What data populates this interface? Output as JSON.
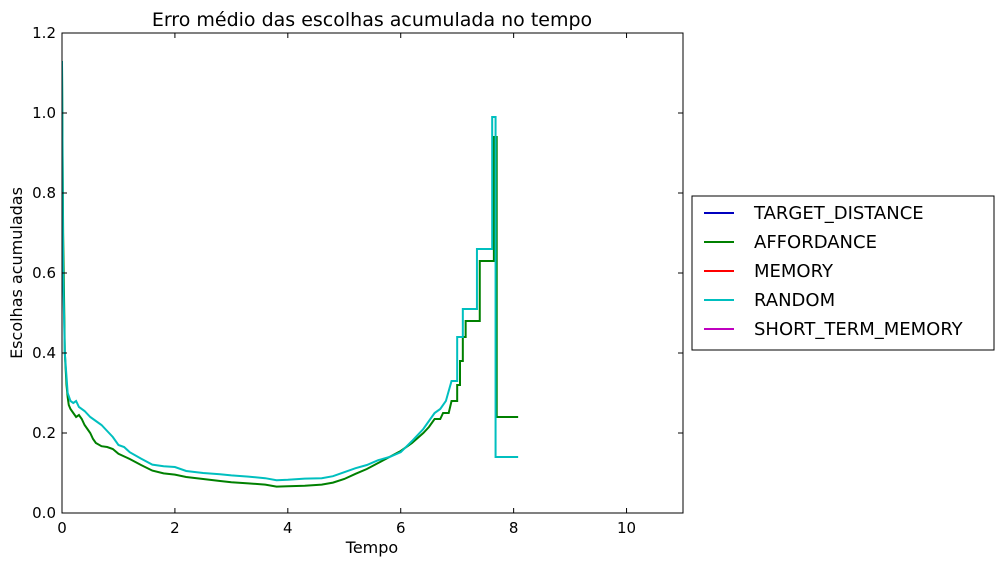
{
  "chart_data": {
    "type": "line",
    "title": "Erro médio das escolhas acumulada no tempo",
    "xlabel": "Tempo",
    "ylabel": "Escolhas acumuladas",
    "xlim": [
      0,
      11
    ],
    "ylim": [
      0,
      1.2
    ],
    "x_ticks": [
      0,
      2,
      4,
      6,
      8,
      10
    ],
    "y_ticks": [
      0.0,
      0.2,
      0.4,
      0.6,
      0.8,
      1.0,
      1.2
    ],
    "x_tick_labels": [
      "0",
      "2",
      "4",
      "6",
      "8",
      "10"
    ],
    "y_tick_labels": [
      "0.0",
      "0.2",
      "0.4",
      "0.6",
      "0.8",
      "1.0",
      "1.2"
    ],
    "grid": false,
    "legend_position": "right-outside",
    "series": [
      {
        "name": "TARGET_DISTANCE",
        "color": "#0000bf",
        "points": []
      },
      {
        "name": "AFFORDANCE",
        "color": "#008000",
        "points": [
          [
            0.0,
            1.12
          ],
          [
            0.02,
            0.7
          ],
          [
            0.05,
            0.4
          ],
          [
            0.08,
            0.32
          ],
          [
            0.1,
            0.29
          ],
          [
            0.12,
            0.27
          ],
          [
            0.15,
            0.26
          ],
          [
            0.2,
            0.25
          ],
          [
            0.25,
            0.24
          ],
          [
            0.3,
            0.245
          ],
          [
            0.35,
            0.235
          ],
          [
            0.4,
            0.22
          ],
          [
            0.45,
            0.21
          ],
          [
            0.5,
            0.2
          ],
          [
            0.55,
            0.185
          ],
          [
            0.6,
            0.175
          ],
          [
            0.7,
            0.167
          ],
          [
            0.8,
            0.165
          ],
          [
            0.9,
            0.16
          ],
          [
            1.0,
            0.148
          ],
          [
            1.2,
            0.135
          ],
          [
            1.4,
            0.12
          ],
          [
            1.6,
            0.106
          ],
          [
            1.8,
            0.099
          ],
          [
            2.0,
            0.096
          ],
          [
            2.2,
            0.09
          ],
          [
            2.5,
            0.085
          ],
          [
            2.8,
            0.08
          ],
          [
            3.0,
            0.077
          ],
          [
            3.3,
            0.074
          ],
          [
            3.6,
            0.071
          ],
          [
            3.8,
            0.066
          ],
          [
            4.0,
            0.067
          ],
          [
            4.3,
            0.068
          ],
          [
            4.6,
            0.071
          ],
          [
            4.8,
            0.076
          ],
          [
            5.0,
            0.085
          ],
          [
            5.2,
            0.098
          ],
          [
            5.4,
            0.11
          ],
          [
            5.6,
            0.125
          ],
          [
            5.8,
            0.14
          ],
          [
            6.0,
            0.155
          ],
          [
            6.2,
            0.175
          ],
          [
            6.4,
            0.2
          ],
          [
            6.5,
            0.215
          ],
          [
            6.6,
            0.235
          ],
          [
            6.7,
            0.235
          ],
          [
            6.75,
            0.25
          ],
          [
            6.85,
            0.25
          ],
          [
            6.9,
            0.28
          ],
          [
            7.0,
            0.28
          ],
          [
            7.0,
            0.32
          ],
          [
            7.05,
            0.32
          ],
          [
            7.05,
            0.38
          ],
          [
            7.1,
            0.38
          ],
          [
            7.1,
            0.44
          ],
          [
            7.15,
            0.44
          ],
          [
            7.15,
            0.48
          ],
          [
            7.4,
            0.48
          ],
          [
            7.4,
            0.63
          ],
          [
            7.65,
            0.63
          ],
          [
            7.65,
            0.94
          ],
          [
            7.7,
            0.94
          ],
          [
            7.7,
            0.24
          ],
          [
            8.08,
            0.24
          ]
        ]
      },
      {
        "name": "MEMORY",
        "color": "#ff0000",
        "points": []
      },
      {
        "name": "RANDOM",
        "color": "#00bfbf",
        "points": [
          [
            0.0,
            1.13
          ],
          [
            0.02,
            0.6
          ],
          [
            0.05,
            0.4
          ],
          [
            0.08,
            0.34
          ],
          [
            0.1,
            0.3
          ],
          [
            0.15,
            0.28
          ],
          [
            0.2,
            0.275
          ],
          [
            0.25,
            0.28
          ],
          [
            0.3,
            0.265
          ],
          [
            0.4,
            0.255
          ],
          [
            0.5,
            0.24
          ],
          [
            0.6,
            0.23
          ],
          [
            0.7,
            0.22
          ],
          [
            0.8,
            0.205
          ],
          [
            0.9,
            0.19
          ],
          [
            1.0,
            0.17
          ],
          [
            1.1,
            0.165
          ],
          [
            1.2,
            0.152
          ],
          [
            1.4,
            0.136
          ],
          [
            1.6,
            0.121
          ],
          [
            1.8,
            0.117
          ],
          [
            2.0,
            0.115
          ],
          [
            2.2,
            0.105
          ],
          [
            2.5,
            0.1
          ],
          [
            2.8,
            0.097
          ],
          [
            3.0,
            0.094
          ],
          [
            3.3,
            0.091
          ],
          [
            3.6,
            0.087
          ],
          [
            3.8,
            0.082
          ],
          [
            4.0,
            0.083
          ],
          [
            4.3,
            0.086
          ],
          [
            4.6,
            0.087
          ],
          [
            4.8,
            0.092
          ],
          [
            5.0,
            0.102
          ],
          [
            5.2,
            0.112
          ],
          [
            5.4,
            0.12
          ],
          [
            5.6,
            0.132
          ],
          [
            5.8,
            0.14
          ],
          [
            6.0,
            0.152
          ],
          [
            6.2,
            0.18
          ],
          [
            6.4,
            0.21
          ],
          [
            6.5,
            0.23
          ],
          [
            6.6,
            0.25
          ],
          [
            6.7,
            0.26
          ],
          [
            6.8,
            0.28
          ],
          [
            6.9,
            0.33
          ],
          [
            7.0,
            0.33
          ],
          [
            7.0,
            0.44
          ],
          [
            7.1,
            0.44
          ],
          [
            7.1,
            0.51
          ],
          [
            7.35,
            0.51
          ],
          [
            7.35,
            0.66
          ],
          [
            7.62,
            0.66
          ],
          [
            7.62,
            0.99
          ],
          [
            7.68,
            0.99
          ],
          [
            7.68,
            0.14
          ],
          [
            8.08,
            0.14
          ]
        ]
      },
      {
        "name": "SHORT_TERM_MEMORY",
        "color": "#bf00bf",
        "points": []
      }
    ]
  }
}
